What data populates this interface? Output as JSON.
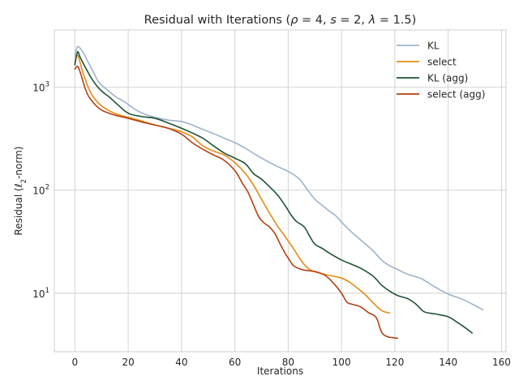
{
  "chart_data": {
    "type": "line",
    "title_parts": [
      {
        "text": "Residual with Iterations (",
        "italic": false
      },
      {
        "text": "ρ",
        "italic": true
      },
      {
        "text": " = 4, ",
        "italic": false
      },
      {
        "text": "s",
        "italic": true
      },
      {
        "text": " = 2, ",
        "italic": false
      },
      {
        "text": "λ",
        "italic": true
      },
      {
        "text": " = 1.5)",
        "italic": false
      }
    ],
    "xlabel": "Iterations",
    "ylabel_parts": [
      {
        "text": "Residual (",
        "italic": false,
        "sub": false
      },
      {
        "text": "ℓ",
        "italic": true,
        "sub": false
      },
      {
        "text": "2",
        "italic": false,
        "sub": true
      },
      {
        "text": "-norm)",
        "italic": false,
        "sub": false
      }
    ],
    "xlim": [
      -7.7,
      161.7
    ],
    "ylim": [
      2.7,
      3600
    ],
    "yscale": "log",
    "grid": true,
    "legend_position": "top-right",
    "xticks": [
      0,
      20,
      40,
      60,
      80,
      100,
      120,
      140,
      160
    ],
    "yticks": [
      {
        "value": 10,
        "base": "10",
        "exp": "1"
      },
      {
        "value": 100,
        "base": "10",
        "exp": "2"
      },
      {
        "value": 1000,
        "base": "10",
        "exp": "3"
      }
    ],
    "series": [
      {
        "name": "KL",
        "color": "#9fb3c8",
        "x": [
          0,
          1,
          3,
          5,
          7,
          9,
          12,
          15,
          18,
          20,
          23,
          26,
          30,
          35,
          40,
          44,
          48,
          52,
          56,
          60,
          64,
          68,
          72,
          76,
          80,
          84,
          86,
          88,
          90,
          92,
          95,
          98,
          100,
          103,
          106,
          109,
          112,
          115,
          118,
          121,
          125,
          130,
          135,
          140,
          145,
          150,
          153
        ],
        "y": [
          2000,
          2480,
          2200,
          1750,
          1400,
          1120,
          950,
          820,
          740,
          680,
          600,
          550,
          510,
          480,
          465,
          430,
          390,
          355,
          320,
          290,
          255,
          220,
          192,
          170,
          152,
          130,
          112,
          95,
          82,
          74,
          64,
          56,
          49,
          41,
          35,
          30,
          25.5,
          21,
          18.5,
          17,
          15.2,
          13.8,
          11.5,
          9.8,
          8.8,
          7.6,
          6.9
        ]
      },
      {
        "name": "select",
        "color": "#e48b14",
        "x": [
          0,
          1,
          3,
          5,
          7,
          10,
          13,
          16,
          20,
          25,
          30,
          35,
          40,
          44,
          48,
          52,
          56,
          60,
          64,
          67,
          70,
          73,
          76,
          79,
          82,
          85,
          88,
          92,
          96,
          100,
          103,
          106,
          109,
          112,
          115,
          118
        ],
        "y": [
          1700,
          2050,
          1400,
          1000,
          800,
          660,
          590,
          545,
          510,
          470,
          430,
          400,
          370,
          330,
          270,
          240,
          220,
          185,
          145,
          112,
          82,
          60,
          45,
          35,
          27,
          20.5,
          17,
          15.6,
          14.8,
          14,
          12.8,
          11.2,
          9.6,
          8,
          6.8,
          6.4
        ]
      },
      {
        "name": "KL (agg)",
        "color": "#1f5235",
        "x": [
          0,
          1,
          2,
          4,
          6,
          8,
          10,
          13,
          16,
          20,
          25,
          30,
          35,
          40,
          44,
          48,
          52,
          56,
          60,
          64,
          67,
          70,
          73,
          76,
          79,
          81,
          83,
          86,
          88,
          90,
          93,
          96,
          100,
          104,
          108,
          112,
          115,
          118,
          121,
          125,
          128,
          131,
          135,
          140,
          143,
          146,
          149
        ],
        "y": [
          1650,
          2200,
          1950,
          1550,
          1250,
          1050,
          920,
          800,
          680,
          560,
          520,
          500,
          450,
          400,
          360,
          320,
          270,
          230,
          205,
          180,
          145,
          128,
          108,
          90,
          70,
          58,
          50,
          44,
          36,
          30,
          27,
          24,
          21,
          19,
          17,
          14.5,
          12,
          10.5,
          9.5,
          8.8,
          7.8,
          6.6,
          6.3,
          5.9,
          5.3,
          4.7,
          4.1
        ]
      },
      {
        "name": "select (agg)",
        "color": "#b5400f",
        "x": [
          0,
          1,
          2,
          3,
          4,
          5,
          6,
          8,
          10,
          12,
          14,
          17,
          20,
          25,
          30,
          35,
          40,
          44,
          48,
          52,
          56,
          60,
          63,
          65,
          67,
          69,
          71,
          73,
          75,
          77,
          79,
          80,
          82,
          85,
          88,
          91,
          94,
          97,
          100,
          102,
          104,
          107,
          110,
          113,
          115,
          117,
          119,
          121
        ],
        "y": [
          1500,
          1600,
          1400,
          1150,
          950,
          830,
          760,
          660,
          600,
          570,
          545,
          520,
          500,
          460,
          430,
          400,
          350,
          290,
          250,
          220,
          195,
          155,
          115,
          95,
          72,
          55,
          48,
          44,
          38,
          30,
          24,
          22,
          18.5,
          17,
          16.5,
          16,
          14.8,
          12.5,
          10,
          8.2,
          7.8,
          7.4,
          6.5,
          5.8,
          4.2,
          3.8,
          3.7,
          3.65
        ]
      }
    ]
  }
}
